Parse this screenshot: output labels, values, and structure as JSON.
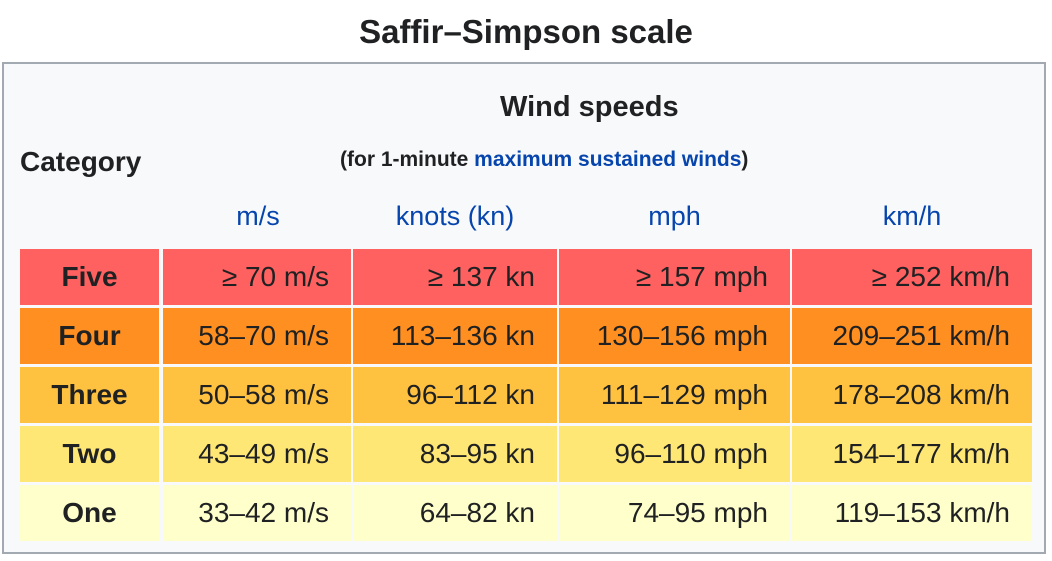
{
  "title": "Saffir–Simpson scale",
  "header": {
    "category": "Category",
    "wind_speeds": "Wind speeds",
    "note_prefix": "(for 1-minute ",
    "note_link": "maximum sustained winds",
    "note_suffix": ")",
    "units": [
      "m/s",
      "knots (kn)",
      "mph",
      "km/h"
    ]
  },
  "colors": {
    "five": "#ff6060",
    "four": "#ff8f20",
    "three": "#ffc140",
    "two": "#ffe775",
    "one": "#ffffcc",
    "link": "#0645ad"
  },
  "rows": [
    {
      "category": "Five",
      "color": "#ff6060",
      "ms": "≥ 70 m/s",
      "kn": "≥ 137 kn",
      "mph": "≥ 157 mph",
      "kmh": "≥ 252 km/h"
    },
    {
      "category": "Four",
      "color": "#ff8f20",
      "ms": "58–70 m/s",
      "kn": "113–136 kn",
      "mph": "130–156 mph",
      "kmh": "209–251 km/h"
    },
    {
      "category": "Three",
      "color": "#ffc140",
      "ms": "50–58 m/s",
      "kn": "96–112 kn",
      "mph": "111–129 mph",
      "kmh": "178–208 km/h"
    },
    {
      "category": "Two",
      "color": "#ffe775",
      "ms": "43–49 m/s",
      "kn": "83–95 kn",
      "mph": "96–110 mph",
      "kmh": "154–177 km/h"
    },
    {
      "category": "One",
      "color": "#ffffcc",
      "ms": "33–42 m/s",
      "kn": "64–82 kn",
      "mph": "74–95 mph",
      "kmh": "119–153 km/h"
    }
  ]
}
